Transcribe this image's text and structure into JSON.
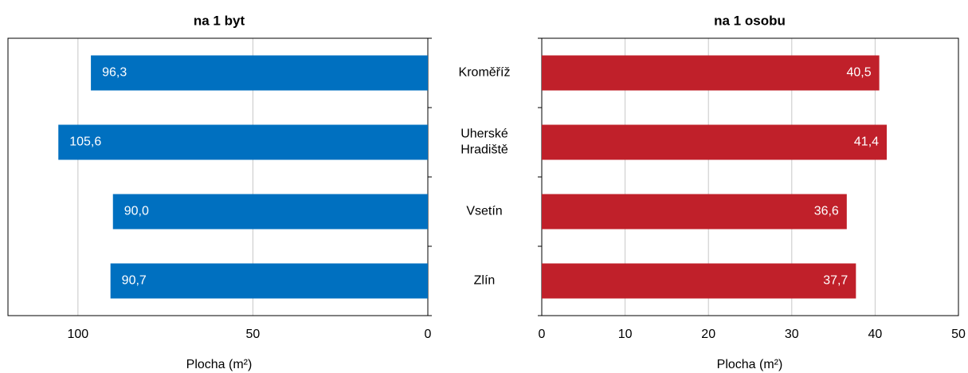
{
  "chart_data": [
    {
      "type": "bar",
      "title": "na 1 byt",
      "orientation": "horizontal",
      "reversed": true,
      "categories": [
        "Kroměříž",
        "Uherské Hradiště",
        "Vsetín",
        "Zlín"
      ],
      "values": [
        96.3,
        105.6,
        90.0,
        90.7
      ],
      "value_labels": [
        "96,3",
        "105,6",
        "90,0",
        "90,7"
      ],
      "color": "#0070c0",
      "xlim": [
        0,
        120
      ],
      "xticks": [
        0,
        50,
        100
      ],
      "xlabel": "Plocha (m²)",
      "grid": true
    },
    {
      "type": "bar",
      "title": "na 1 osobu",
      "orientation": "horizontal",
      "reversed": false,
      "values": [
        40.5,
        41.4,
        36.6,
        37.7
      ],
      "value_labels": [
        "40,5",
        "41,4",
        "36,6",
        "37,7"
      ],
      "color": "#c0202a",
      "xlim": [
        0,
        50
      ],
      "xticks": [
        0,
        10,
        20,
        30,
        40,
        50
      ],
      "xlabel": "Plocha (m²)",
      "grid": true
    }
  ]
}
